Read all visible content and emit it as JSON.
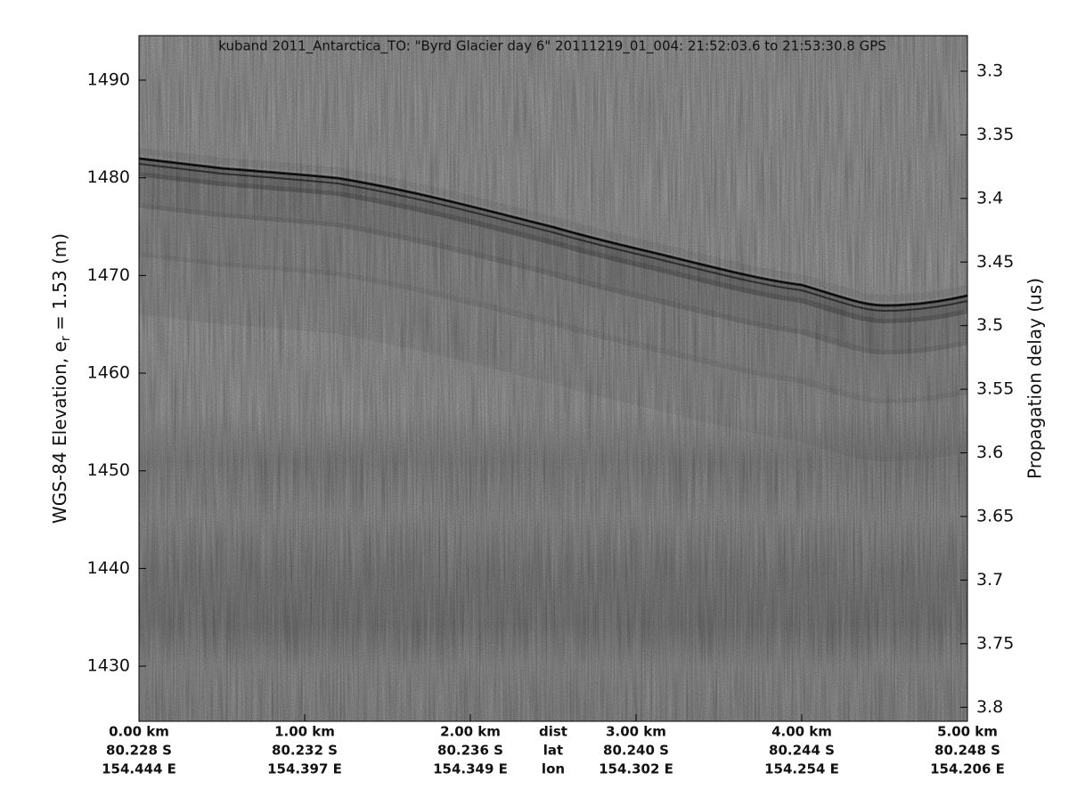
{
  "chart_data": {
    "type": "echogram",
    "title": "kuband 2011_Antarctica_TO: \"Byrd Glacier day 6\"  20111219_01_004: 21:52:03.6 to 21:53:30.8 GPS",
    "ylabel": {
      "text": "WGS-84 Elevation, e",
      "subscript": "r",
      "suffix": " = 1.53 (m)"
    },
    "y2label": "Propagation delay (us)",
    "ylim": [
      1424.35,
      1494.56
    ],
    "yticks": [
      1430,
      1440,
      1450,
      1460,
      1470,
      1480,
      1490
    ],
    "y2lim": [
      3.811,
      3.272
    ],
    "y2ticks": [
      3.3,
      3.35,
      3.4,
      3.45,
      3.5,
      3.55,
      3.6,
      3.65,
      3.7,
      3.75,
      3.8
    ],
    "xlim": [
      0,
      5
    ],
    "xticks": [
      {
        "value": 0,
        "label": "0.00 km"
      },
      {
        "value": 1,
        "label": "1.00 km"
      },
      {
        "value": 2,
        "label": "2.00 km"
      },
      {
        "value": 3,
        "label": "3.00 km"
      },
      {
        "value": 4,
        "label": "4.00 km"
      },
      {
        "value": 5,
        "label": "5.00 km"
      }
    ],
    "xtick_lat": [
      "80.228 S",
      "80.232 S",
      "80.236 S",
      "80.240 S",
      "80.244 S",
      "80.248 S"
    ],
    "xtick_lon": [
      "154.444 E",
      "154.397 E",
      "154.349 E",
      "154.302 E",
      "154.254 E",
      "154.206 E"
    ],
    "xrow_labels": [
      "dist",
      "lat",
      "lon"
    ],
    "xrow_label_at": 2.5
  }
}
